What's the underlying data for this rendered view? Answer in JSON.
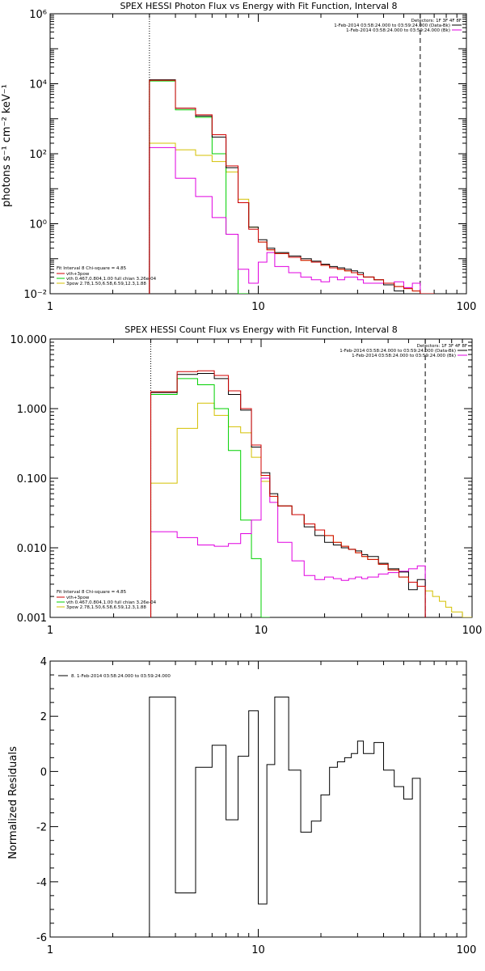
{
  "chart_data": [
    {
      "type": "line",
      "title": "SPEX HESSI Photon Flux vs Energy with Fit Function, Interval 8",
      "xlabel": "",
      "ylabel": "photons s⁻¹ cm⁻² keV⁻¹",
      "xscale": "log",
      "yscale": "log",
      "xlim": [
        1,
        100
      ],
      "ylim": [
        0.01,
        1000000
      ],
      "x_ticks": [
        1,
        10,
        100
      ],
      "x_tick_labels": [
        "1",
        "10",
        "100"
      ],
      "y_ticks": [
        0.01,
        1,
        100,
        10000,
        1000000
      ],
      "y_tick_labels": [
        "10⁻²",
        "10⁰",
        "10²",
        "10⁴",
        "10⁶"
      ],
      "vlines": [
        {
          "x": 3,
          "style": "dotted"
        },
        {
          "x": 60,
          "style": "dashed"
        }
      ],
      "legend_top": {
        "header": "Detectors: 1F 3F 4F 8F",
        "entries": [
          {
            "label": "1-Feb-2014 03:58:24.000 to 03:59:24.000 (Data-Bk)",
            "color": "#000000"
          },
          {
            "label": "1-Feb-2014 03:58:24.000 to 03:59:24.000 (Bk)",
            "color": "#e000e0"
          }
        ]
      },
      "legend_bottom": {
        "header": "Fit Interval 8   Chi-square = 4.85",
        "entries": [
          {
            "label": "vth+3pow",
            "color": "#d00000"
          },
          {
            "label": "vth 0.467,0.804,1.00  full chian 3.26e-04",
            "color": "#00d000"
          },
          {
            "label": "3pow 2.78,1.50,6.58,6.59,12.3,1.88",
            "color": "#d4c000"
          }
        ]
      },
      "edges": [
        3,
        4,
        5,
        6,
        7,
        8,
        9,
        10,
        11,
        12,
        14,
        16,
        18,
        20,
        22,
        24,
        26,
        28,
        30,
        32,
        36,
        40,
        45,
        50,
        55,
        60,
        65,
        70
      ],
      "series": [
        {
          "name": "",
          "color": "#000000",
          "values": [
            13000,
            2000,
            1200,
            300,
            40,
            4,
            0.8,
            0.35,
            0.2,
            0.15,
            0.12,
            0.1,
            0.085,
            0.07,
            0.06,
            0.055,
            0.05,
            0.045,
            0.04,
            0.03,
            0.025,
            0.018,
            0.012,
            0.01,
            0.008,
            null,
            null
          ]
        },
        {
          "name": "",
          "color": "#e000e0",
          "values": [
            150,
            20,
            6,
            1.5,
            0.5,
            0.05,
            0.02,
            0.08,
            0.15,
            0.06,
            0.04,
            0.03,
            0.025,
            0.022,
            0.03,
            0.025,
            0.03,
            0.03,
            0.025,
            0.02,
            0.02,
            0.018,
            0.022,
            0.015,
            0.02,
            null,
            null
          ]
        },
        {
          "name": "vth+3pow",
          "color": "#d00000",
          "values": [
            12500,
            2000,
            1300,
            350,
            45,
            4,
            0.7,
            0.3,
            0.18,
            0.14,
            0.11,
            0.09,
            0.08,
            0.065,
            0.055,
            0.05,
            0.045,
            0.04,
            0.035,
            0.03,
            0.025,
            0.02,
            0.016,
            0.014,
            0.012,
            0.01,
            0.008
          ]
        },
        {
          "name": "vth",
          "color": "#00d000",
          "values": [
            12000,
            1800,
            1100,
            100,
            0.5,
            0.003,
            null,
            null,
            null,
            null,
            null,
            null,
            null,
            null,
            null,
            null,
            null,
            null,
            null,
            null,
            null,
            null,
            null,
            null,
            null,
            null,
            null
          ]
        },
        {
          "name": "3pow",
          "color": "#d4c000",
          "values": [
            200,
            130,
            90,
            60,
            30,
            5,
            0.8,
            0.3,
            0.18,
            0.14,
            0.11,
            0.09,
            0.08,
            0.065,
            0.055,
            0.05,
            0.045,
            0.04,
            0.035,
            0.03,
            0.025,
            0.02,
            0.016,
            0.014,
            0.012,
            0.01,
            0.008
          ]
        }
      ]
    },
    {
      "type": "line",
      "title": "SPEX HESSI Count Flux vs Energy with Fit Function, Interval 8",
      "xlabel": "",
      "ylabel": "",
      "xscale": "log",
      "yscale": "log",
      "xlim": [
        1,
        100
      ],
      "ylim": [
        0.001,
        10
      ],
      "x_ticks": [
        1,
        10,
        100
      ],
      "x_tick_labels": [
        "1",
        "10",
        "100"
      ],
      "y_ticks": [
        0.001,
        0.01,
        0.1,
        1,
        10
      ],
      "y_tick_labels": [
        "0.001",
        "0.010",
        "0.100",
        "1.000",
        "10.000"
      ],
      "vlines": [
        {
          "x": 3,
          "style": "dotted"
        },
        {
          "x": 60,
          "style": "dashed"
        }
      ],
      "legend_top": {
        "header": "Detectors: 1F 3F 4F 8F",
        "entries": [
          {
            "label": "1-Feb-2014 03:58:24.000 to 03:59:24.000 (Data-Bk)",
            "color": "#000000"
          },
          {
            "label": "1-Feb-2014 03:58:24.000 to 03:59:24.000 (Bk)",
            "color": "#e000e0"
          }
        ]
      },
      "legend_bottom": {
        "header": "Fit Interval 8   Chi-square = 4.85",
        "entries": [
          {
            "label": "vth+3pow",
            "color": "#d00000"
          },
          {
            "label": "vth 0.467,0.804,1.00  full chian 3.26e-04",
            "color": "#00d000"
          },
          {
            "label": "3pow 2.78,1.50,6.58,6.59,12.3,1.88",
            "color": "#d4c000"
          }
        ]
      },
      "edges": [
        3,
        4,
        5,
        6,
        7,
        8,
        9,
        10,
        11,
        12,
        14,
        16,
        18,
        20,
        22,
        24,
        26,
        28,
        30,
        32,
        36,
        40,
        45,
        50,
        55,
        60,
        65,
        70,
        75,
        80,
        90,
        100
      ],
      "series": [
        {
          "name": "",
          "color": "#000000",
          "values": [
            1.7,
            3.1,
            3.2,
            2.7,
            1.6,
            0.95,
            0.28,
            0.12,
            0.06,
            0.04,
            0.03,
            0.02,
            0.015,
            0.012,
            0.011,
            0.01,
            0.0095,
            0.009,
            0.008,
            0.0075,
            0.006,
            0.005,
            0.0045,
            0.0025,
            0.0035,
            null,
            null,
            null,
            null,
            null,
            null
          ]
        },
        {
          "name": "",
          "color": "#e000e0",
          "values": [
            0.017,
            0.014,
            0.011,
            0.0105,
            0.0115,
            0.016,
            0.025,
            0.1,
            0.045,
            0.012,
            0.0065,
            0.004,
            0.0035,
            0.0038,
            0.0036,
            0.0034,
            0.0036,
            0.0038,
            0.0036,
            0.0038,
            0.0042,
            0.0044,
            0.0046,
            0.005,
            0.0055,
            null,
            null,
            null,
            null,
            null,
            null
          ]
        },
        {
          "name": "vth+3pow",
          "color": "#d00000",
          "values": [
            1.75,
            3.4,
            3.5,
            3.0,
            1.8,
            1.0,
            0.3,
            0.11,
            0.055,
            0.04,
            0.03,
            0.022,
            0.018,
            0.015,
            0.012,
            0.0105,
            0.0095,
            0.0085,
            0.0075,
            0.0068,
            0.0058,
            0.0048,
            0.0038,
            0.0032,
            0.0028,
            null,
            null,
            null,
            null,
            null,
            null
          ]
        },
        {
          "name": "vth",
          "color": "#00d000",
          "values": [
            1.6,
            2.7,
            2.2,
            1.0,
            0.25,
            0.025,
            0.007,
            0.0008,
            null,
            null,
            null,
            null,
            null,
            null,
            null,
            null,
            null,
            null,
            null,
            null,
            null,
            null,
            null,
            null,
            null,
            null,
            null,
            null,
            null,
            null,
            null
          ]
        },
        {
          "name": "3pow",
          "color": "#d4c000",
          "values": [
            0.085,
            0.52,
            1.2,
            0.8,
            0.55,
            0.45,
            0.2,
            0.09,
            0.055,
            0.04,
            0.03,
            0.022,
            0.018,
            0.015,
            0.012,
            0.0105,
            0.0095,
            0.0085,
            0.0075,
            0.0068,
            0.0058,
            0.0048,
            0.0038,
            0.0032,
            0.0028,
            0.0024,
            0.002,
            0.0017,
            0.0014,
            0.0012,
            0.001
          ]
        }
      ]
    },
    {
      "type": "line",
      "title": "",
      "xlabel": "",
      "ylabel": "Normalized Residuals",
      "xscale": "log",
      "yscale": "linear",
      "xlim": [
        1,
        100
      ],
      "ylim": [
        -6,
        4
      ],
      "x_ticks": [
        1,
        10,
        100
      ],
      "x_tick_labels": [
        "1",
        "10",
        "100"
      ],
      "y_ticks": [
        -6,
        -4,
        -2,
        0,
        2,
        4
      ],
      "y_tick_labels": [
        "-6",
        "-4",
        "-2",
        "0",
        "2",
        "4"
      ],
      "legend": {
        "entries": [
          {
            "label": "8. 1-Feb-2014 03:58:24.000 to 03:59:24.000",
            "color": "#000000"
          }
        ]
      },
      "edges": [
        3,
        4,
        5,
        6,
        7,
        8,
        9,
        10,
        11,
        12,
        14,
        16,
        18,
        20,
        22,
        24,
        26,
        28,
        30,
        32,
        36,
        40,
        45,
        50,
        55,
        60
      ],
      "series": [
        {
          "name": "",
          "color": "#000000",
          "values": [
            2.7,
            -4.4,
            0.15,
            0.95,
            -1.75,
            0.55,
            2.2,
            -4.8,
            0.25,
            2.7,
            0.05,
            -2.2,
            -1.8,
            -0.85,
            0.15,
            0.35,
            0.5,
            0.65,
            1.1,
            0.65,
            1.05,
            0.05,
            -0.55,
            -1.0,
            -0.25
          ]
        }
      ]
    }
  ]
}
